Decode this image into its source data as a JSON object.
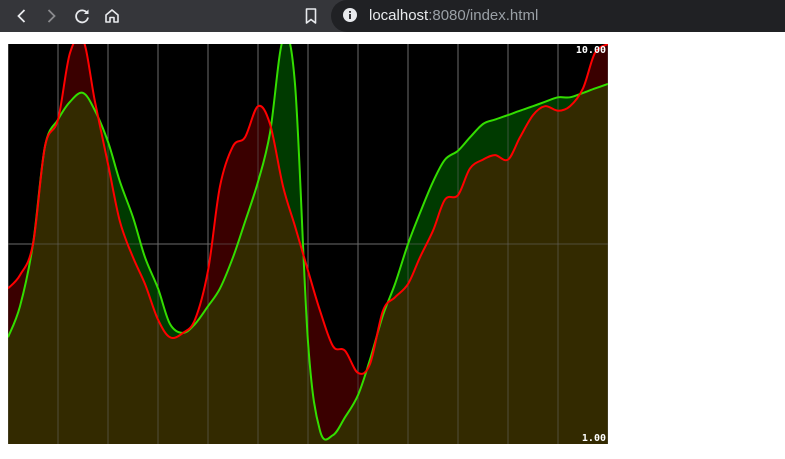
{
  "browser": {
    "url_host": "localhost",
    "url_rest": ":8080/index.html"
  },
  "icons": {
    "back": "chevron-left-icon",
    "forward": "chevron-right-icon",
    "reload": "reload-icon",
    "home": "home-icon",
    "bookmark": "bookmark-icon",
    "info": "info-icon"
  },
  "chart_data": {
    "type": "area",
    "ylim": [
      1,
      10
    ],
    "y_tick_labels": [
      "10.00",
      "1.00"
    ],
    "grid": true,
    "colors": {
      "background": "#000000",
      "red_line": "#ff0000",
      "green_line": "#33dd00",
      "both_fill": "#332a00",
      "red_only_fill": "#3a0000",
      "green_only_fill": "#003a00",
      "grid": "#6b6b6b"
    },
    "x": [
      0,
      12,
      25,
      37,
      50,
      62,
      75,
      87,
      100,
      112,
      125,
      137,
      150,
      162,
      175,
      187,
      200,
      212,
      225,
      237,
      250,
      262,
      275,
      287,
      300,
      312,
      325,
      337,
      350,
      362,
      375,
      387,
      400,
      412,
      425,
      437,
      450,
      462,
      475,
      487,
      500,
      512,
      525,
      537,
      550,
      562,
      575,
      587,
      600
    ],
    "series": [
      {
        "values": [
          4.5,
          4.8,
          5.5,
          7.7,
          8.3,
          9.8,
          10.1,
          8.7,
          7.3,
          6.0,
          5.2,
          4.6,
          3.8,
          3.4,
          3.5,
          3.8,
          4.9,
          6.8,
          7.7,
          7.9,
          8.6,
          8.2,
          6.8,
          5.9,
          4.9,
          4.0,
          3.2,
          3.1,
          2.6,
          2.8,
          4.0,
          4.3,
          4.6,
          5.2,
          5.8,
          6.5,
          6.6,
          7.2,
          7.4,
          7.5,
          7.4,
          7.9,
          8.4,
          8.6,
          8.5,
          8.6,
          9.0,
          9.8,
          10.0
        ]
      },
      {
        "values": [
          3.4,
          4.1,
          5.5,
          7.7,
          8.3,
          8.7,
          8.9,
          8.5,
          7.8,
          6.9,
          6.1,
          5.2,
          4.5,
          3.7,
          3.5,
          3.7,
          4.1,
          4.5,
          5.2,
          6.0,
          6.9,
          8.0,
          10.1,
          9.1,
          3.3,
          1.3,
          1.2,
          1.6,
          2.1,
          2.9,
          3.9,
          4.6,
          5.5,
          6.2,
          6.9,
          7.4,
          7.6,
          7.9,
          8.2,
          8.3,
          8.4,
          8.5,
          8.6,
          8.7,
          8.8,
          8.8,
          8.9,
          9.0,
          9.1
        ]
      }
    ]
  }
}
